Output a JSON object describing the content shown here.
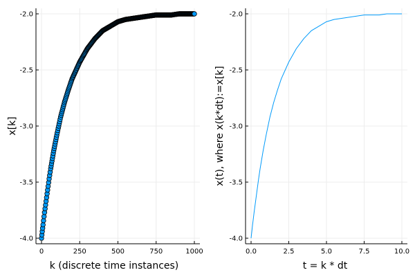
{
  "chart_data": [
    {
      "type": "scatter",
      "xlabel": "k (discrete time instances)",
      "ylabel": "x[k]",
      "x_ticks": [
        0,
        250,
        500,
        750,
        1000
      ],
      "x_tick_labels": [
        "0",
        "250",
        "500",
        "750",
        "1000"
      ],
      "y_ticks": [
        -4.0,
        -3.5,
        -3.0,
        -2.5,
        -2.0
      ],
      "y_tick_labels": [
        "-4.0",
        "-3.5",
        "-3.0",
        "-2.5",
        "-2.0"
      ],
      "xlim": [
        0,
        1000
      ],
      "ylim": [
        -4.0,
        -2.0
      ],
      "grid": true,
      "legend": "none",
      "series": [
        {
          "marker": "circle",
          "color": "#009AFA",
          "edge_color": "#000000",
          "x": [
            0,
            5,
            10,
            20,
            30,
            40,
            50,
            60,
            80,
            100,
            125,
            150,
            175,
            200,
            250,
            300,
            350,
            400,
            450,
            500,
            550,
            600,
            650,
            700,
            750,
            800,
            850,
            900,
            950,
            1000
          ],
          "y": [
            -4.0,
            -3.94,
            -3.88,
            -3.77,
            -3.67,
            -3.57,
            -3.47,
            -3.38,
            -3.22,
            -3.08,
            -2.92,
            -2.79,
            -2.68,
            -2.58,
            -2.43,
            -2.31,
            -2.22,
            -2.15,
            -2.11,
            -2.07,
            -2.05,
            -2.04,
            -2.03,
            -2.02,
            -2.01,
            -2.01,
            -2.01,
            -2.0,
            -2.0,
            -2.0
          ]
        }
      ]
    },
    {
      "type": "line",
      "xlabel": "t = k * dt",
      "ylabel": "x(t), where x(k*dt):=x[k]",
      "x_ticks": [
        0,
        2.5,
        5.0,
        7.5,
        10.0
      ],
      "x_tick_labels": [
        "0.0",
        "2.5",
        "5.0",
        "7.5",
        "10.0"
      ],
      "y_ticks": [
        -4.0,
        -3.5,
        -3.0,
        -2.5,
        -2.0
      ],
      "y_tick_labels": [
        "-4.0",
        "-3.5",
        "-3.0",
        "-2.5",
        "-2.0"
      ],
      "xlim": [
        0,
        10
      ],
      "ylim": [
        -4.0,
        -2.0
      ],
      "grid": true,
      "legend": "none",
      "series": [
        {
          "color": "#009AFA",
          "x": [
            0,
            0.1,
            0.2,
            0.3,
            0.4,
            0.5,
            0.6,
            0.8,
            1.0,
            1.25,
            1.5,
            1.75,
            2.0,
            2.5,
            3.0,
            3.5,
            4.0,
            4.5,
            5.0,
            5.5,
            6.0,
            6.5,
            7.0,
            7.5,
            8.0,
            8.5,
            9.0,
            9.5,
            10.0
          ],
          "y": [
            -4.0,
            -3.88,
            -3.77,
            -3.67,
            -3.57,
            -3.47,
            -3.38,
            -3.22,
            -3.08,
            -2.92,
            -2.79,
            -2.68,
            -2.58,
            -2.43,
            -2.31,
            -2.22,
            -2.15,
            -2.11,
            -2.07,
            -2.05,
            -2.04,
            -2.03,
            -2.02,
            -2.01,
            -2.01,
            -2.01,
            -2.0,
            -2.0,
            -2.0
          ]
        }
      ]
    }
  ]
}
